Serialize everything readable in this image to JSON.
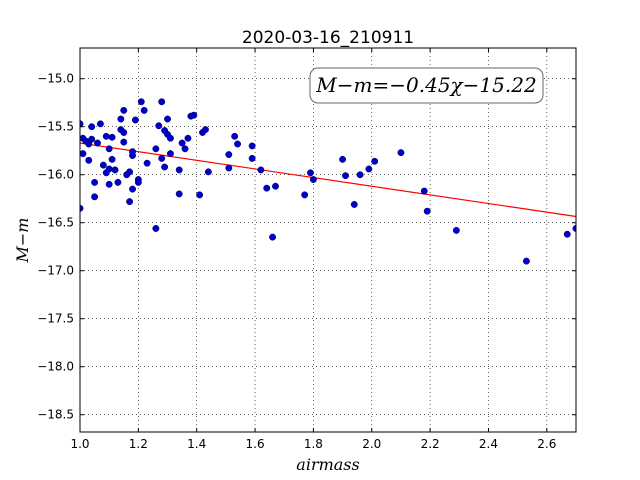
{
  "chart_data": {
    "type": "scatter",
    "title": "2020-03-16_210911",
    "xlabel": "airmass",
    "ylabel": "M−m",
    "xlim": [
      1.0,
      2.7
    ],
    "ylim": [
      -18.68,
      -14.68
    ],
    "y_inverted": true,
    "grid": true,
    "grid_style": "dotted",
    "x_ticks": [
      1.0,
      1.2,
      1.4,
      1.6,
      1.8,
      2.0,
      2.2,
      2.4,
      2.6
    ],
    "x_tick_labels": [
      "1.0",
      "1.2",
      "1.4",
      "1.6",
      "1.8",
      "2.0",
      "2.2",
      "2.4",
      "2.6"
    ],
    "y_ticks": [
      -15.0,
      -15.5,
      -16.0,
      -16.5,
      -17.0,
      -17.5,
      -18.0,
      -18.5
    ],
    "y_tick_labels": [
      "−15.0",
      "−15.5",
      "−16.0",
      "−16.5",
      "−17.0",
      "−17.5",
      "−18.0",
      "−18.5"
    ],
    "annotation": {
      "text": "M−m=−0.45χ−15.22",
      "placement": "top-right"
    },
    "fit": {
      "slope": -0.45,
      "intercept": -15.22,
      "color": "#ff0000"
    },
    "marker_color": "#0000cc",
    "points": [
      [
        1.0,
        -15.47
      ],
      [
        1.0,
        -16.35
      ],
      [
        1.01,
        -15.62
      ],
      [
        1.01,
        -15.78
      ],
      [
        1.02,
        -15.65
      ],
      [
        1.03,
        -15.68
      ],
      [
        1.03,
        -15.85
      ],
      [
        1.04,
        -15.5
      ],
      [
        1.04,
        -15.63
      ],
      [
        1.05,
        -16.08
      ],
      [
        1.05,
        -16.23
      ],
      [
        1.06,
        -15.67
      ],
      [
        1.07,
        -15.47
      ],
      [
        1.08,
        -15.9
      ],
      [
        1.09,
        -15.6
      ],
      [
        1.09,
        -15.98
      ],
      [
        1.1,
        -15.73
      ],
      [
        1.1,
        -15.94
      ],
      [
        1.1,
        -16.1
      ],
      [
        1.11,
        -15.61
      ],
      [
        1.11,
        -15.84
      ],
      [
        1.12,
        -15.95
      ],
      [
        1.13,
        -16.08
      ],
      [
        1.14,
        -15.53
      ],
      [
        1.14,
        -15.42
      ],
      [
        1.15,
        -15.33
      ],
      [
        1.15,
        -15.66
      ],
      [
        1.15,
        -15.56
      ],
      [
        1.16,
        -16.0
      ],
      [
        1.17,
        -16.28
      ],
      [
        1.17,
        -15.97
      ],
      [
        1.18,
        -15.76
      ],
      [
        1.18,
        -15.8
      ],
      [
        1.18,
        -16.15
      ],
      [
        1.19,
        -15.43
      ],
      [
        1.2,
        -16.05
      ],
      [
        1.2,
        -16.08
      ],
      [
        1.21,
        -15.24
      ],
      [
        1.22,
        -15.33
      ],
      [
        1.23,
        -15.88
      ],
      [
        1.26,
        -16.56
      ],
      [
        1.26,
        -15.73
      ],
      [
        1.27,
        -15.49
      ],
      [
        1.28,
        -15.24
      ],
      [
        1.28,
        -15.83
      ],
      [
        1.29,
        -15.92
      ],
      [
        1.29,
        -15.54
      ],
      [
        1.3,
        -15.42
      ],
      [
        1.3,
        -15.58
      ],
      [
        1.31,
        -15.62
      ],
      [
        1.31,
        -15.78
      ],
      [
        1.34,
        -15.95
      ],
      [
        1.34,
        -16.2
      ],
      [
        1.35,
        -15.67
      ],
      [
        1.36,
        -15.73
      ],
      [
        1.37,
        -15.62
      ],
      [
        1.38,
        -15.39
      ],
      [
        1.39,
        -15.38
      ],
      [
        1.41,
        -16.21
      ],
      [
        1.42,
        -15.56
      ],
      [
        1.43,
        -15.53
      ],
      [
        1.44,
        -15.97
      ],
      [
        1.51,
        -15.79
      ],
      [
        1.51,
        -15.93
      ],
      [
        1.53,
        -15.6
      ],
      [
        1.54,
        -15.68
      ],
      [
        1.59,
        -15.7
      ],
      [
        1.59,
        -15.83
      ],
      [
        1.62,
        -15.95
      ],
      [
        1.64,
        -16.14
      ],
      [
        1.66,
        -16.65
      ],
      [
        1.67,
        -16.12
      ],
      [
        1.77,
        -16.21
      ],
      [
        1.79,
        -15.98
      ],
      [
        1.8,
        -16.05
      ],
      [
        1.9,
        -15.84
      ],
      [
        1.91,
        -16.01
      ],
      [
        1.94,
        -16.31
      ],
      [
        1.96,
        -16.0
      ],
      [
        1.99,
        -15.94
      ],
      [
        2.01,
        -15.86
      ],
      [
        2.1,
        -15.77
      ],
      [
        2.18,
        -16.17
      ],
      [
        2.19,
        -16.38
      ],
      [
        2.29,
        -16.58
      ],
      [
        2.53,
        -16.9
      ],
      [
        2.67,
        -16.62
      ],
      [
        2.7,
        -16.56
      ]
    ]
  }
}
